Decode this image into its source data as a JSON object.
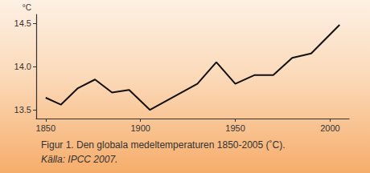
{
  "chart_data": {
    "type": "line",
    "title": "Figur 1. Den globala medeltemperaturen 1850-2005 (˚C).",
    "subtitle": "Källa: IPCC 2007.",
    "y_label": "°C",
    "x": [
      1850,
      1858,
      1867,
      1876,
      1885,
      1894,
      1905,
      1930,
      1940,
      1950,
      1960,
      1970,
      1980,
      1990,
      2005
    ],
    "values": [
      13.64,
      13.56,
      13.75,
      13.85,
      13.7,
      13.73,
      13.5,
      13.8,
      14.05,
      13.8,
      13.9,
      13.9,
      14.1,
      14.15,
      14.48
    ],
    "color": "#111111",
    "xlim": [
      1845,
      2010
    ],
    "xticks": [
      1850,
      1900,
      1950,
      2000
    ],
    "ylim": [
      13.4,
      14.6
    ],
    "yticks": [
      13.5,
      {
        "value": 14,
        "label": "14.0"
      },
      14.5
    ],
    "grid": false
  }
}
